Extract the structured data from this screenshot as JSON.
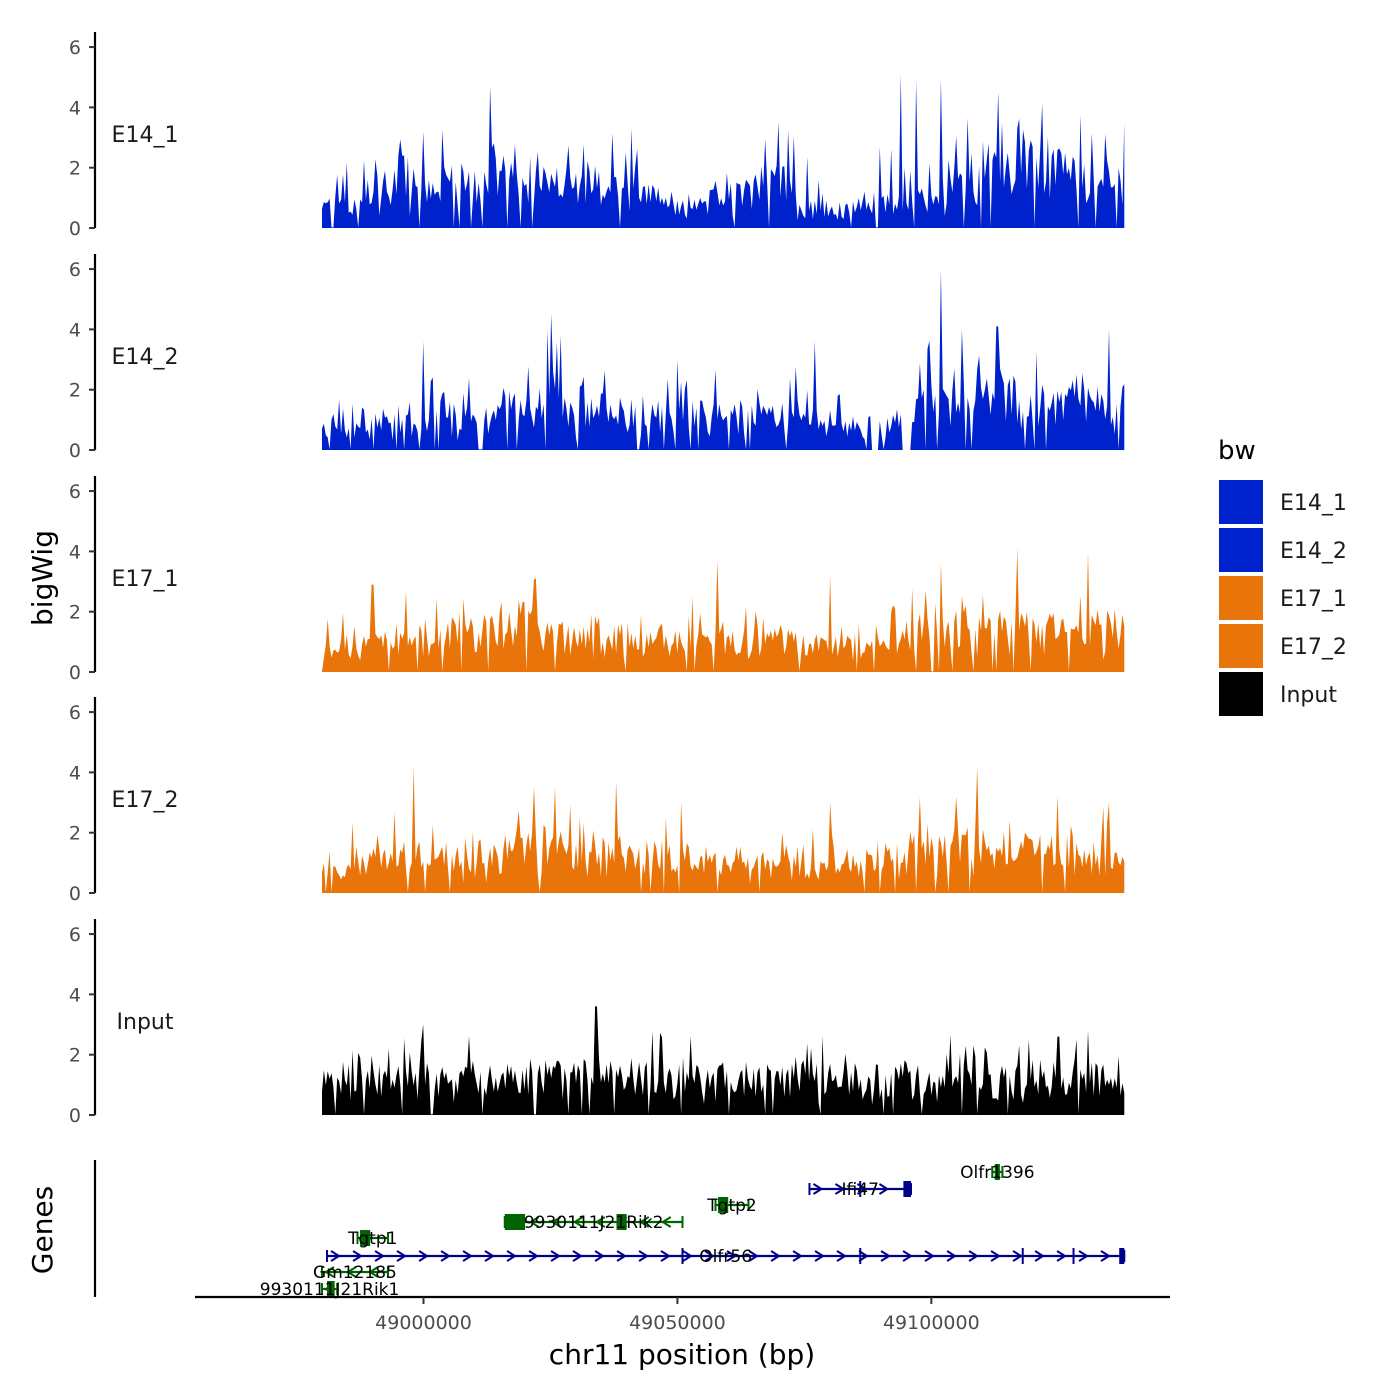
{
  "chart_data": {
    "type": "area",
    "chromosome": "chr11",
    "xlabel": "chr11 position (bp)",
    "ylabel_tracks": "bigWig",
    "ylabel_genes": "Genes",
    "xlim": [
      48955000,
      49147000
    ],
    "signal_range": [
      48980000,
      49138000
    ],
    "x_ticks": [
      {
        "value": 49000000,
        "label": "49000000"
      },
      {
        "value": 49050000,
        "label": "49050000"
      },
      {
        "value": 49100000,
        "label": "49100000"
      }
    ],
    "ylim": [
      0,
      6.5
    ],
    "y_ticks": [
      {
        "value": 0,
        "label": "0"
      },
      {
        "value": 2,
        "label": "2"
      },
      {
        "value": 4,
        "label": "4"
      },
      {
        "value": 6,
        "label": "6"
      }
    ],
    "legend": {
      "title": "bw",
      "position": "right",
      "entries": [
        {
          "name": "E14_1",
          "color": "#0022cc"
        },
        {
          "name": "E14_2",
          "color": "#0022cc"
        },
        {
          "name": "E17_1",
          "color": "#e8740a"
        },
        {
          "name": "E17_2",
          "color": "#e8740a"
        },
        {
          "name": "Input",
          "color": "#000000"
        }
      ]
    },
    "series": [
      {
        "name": "E14_1",
        "color": "#0022cc",
        "seed": 11,
        "base": 0.8,
        "noise": 1.3,
        "profile": [
          [
            48980000,
            0.9
          ],
          [
            48995000,
            0.9
          ],
          [
            49008000,
            1.5
          ],
          [
            49015000,
            2.1
          ],
          [
            49025000,
            1.6
          ],
          [
            49045000,
            1.0
          ],
          [
            49050000,
            0.5
          ],
          [
            49062000,
            1.2
          ],
          [
            49070000,
            1.9
          ],
          [
            49075000,
            0.3
          ],
          [
            49082000,
            0.6
          ],
          [
            49095000,
            0.8
          ],
          [
            49104000,
            1.3
          ],
          [
            49112000,
            2.6
          ],
          [
            49124000,
            2.2
          ],
          [
            49138000,
            1.4
          ]
        ],
        "peaks": [
          [
            49013000,
            4.7
          ],
          [
            49094000,
            5.1
          ],
          [
            49097000,
            4.9
          ],
          [
            49102000,
            4.9
          ],
          [
            49041000,
            3.3
          ],
          [
            49070000,
            3.5
          ],
          [
            49114000,
            3.5
          ],
          [
            49138000,
            3.5
          ],
          [
            49000000,
            3.2
          ],
          [
            48996000,
            2.4
          ]
        ]
      },
      {
        "name": "E14_2",
        "color": "#0022cc",
        "seed": 23,
        "base": 0.7,
        "noise": 1.2,
        "profile": [
          [
            48980000,
            0.8
          ],
          [
            48990000,
            0.9
          ],
          [
            49010000,
            1.1
          ],
          [
            49025000,
            2.0
          ],
          [
            49033000,
            1.3
          ],
          [
            49050000,
            1.0
          ],
          [
            49075000,
            1.1
          ],
          [
            49082000,
            0.6
          ],
          [
            49090000,
            0.5
          ],
          [
            49095000,
            1.2
          ],
          [
            49104000,
            2.2
          ],
          [
            49115000,
            2.0
          ],
          [
            49125000,
            1.6
          ],
          [
            49138000,
            1.5
          ]
        ],
        "peaks": [
          [
            49025000,
            4.5
          ],
          [
            49027000,
            3.8
          ],
          [
            49096000,
            5.5
          ],
          [
            49102000,
            6.0
          ],
          [
            49106000,
            4.0
          ],
          [
            49113000,
            4.1
          ],
          [
            49000000,
            3.6
          ],
          [
            49077000,
            3.6
          ],
          [
            49135000,
            4.0
          ],
          [
            49050000,
            3.0
          ]
        ],
        "gaps": [
          [
            49088000,
            49089500
          ],
          [
            49094000,
            49096000
          ]
        ]
      },
      {
        "name": "E17_1",
        "color": "#e8740a",
        "seed": 37,
        "base": 0.9,
        "noise": 1.0,
        "profile": [
          [
            48980000,
            1.1
          ],
          [
            49000000,
            1.2
          ],
          [
            49022000,
            1.9
          ],
          [
            49030000,
            1.3
          ],
          [
            49050000,
            0.9
          ],
          [
            49060000,
            1.1
          ],
          [
            49090000,
            0.9
          ],
          [
            49100000,
            1.6
          ],
          [
            49115000,
            1.7
          ],
          [
            49138000,
            1.3
          ]
        ],
        "peaks": [
          [
            49058000,
            3.7
          ],
          [
            49102000,
            3.6
          ],
          [
            49117000,
            4.1
          ],
          [
            49131000,
            4.0
          ],
          [
            49022000,
            3.1
          ],
          [
            49080000,
            3.2
          ],
          [
            48990000,
            2.9
          ]
        ]
      },
      {
        "name": "E17_2",
        "color": "#e8740a",
        "seed": 53,
        "base": 0.8,
        "noise": 1.1,
        "profile": [
          [
            48980000,
            1.0
          ],
          [
            48995000,
            1.2
          ],
          [
            49005000,
            0.9
          ],
          [
            49025000,
            1.9
          ],
          [
            49040000,
            1.4
          ],
          [
            49060000,
            1.0
          ],
          [
            49090000,
            1.1
          ],
          [
            49100000,
            1.8
          ],
          [
            49118000,
            1.4
          ],
          [
            49138000,
            1.3
          ]
        ],
        "peaks": [
          [
            48998000,
            4.2
          ],
          [
            49038000,
            3.7
          ],
          [
            49109000,
            4.2
          ],
          [
            49026000,
            3.5
          ],
          [
            49105000,
            3.2
          ],
          [
            49080000,
            3.0
          ],
          [
            49135000,
            3.0
          ]
        ]
      },
      {
        "name": "Input",
        "color": "#000000",
        "seed": 71,
        "base": 1.1,
        "noise": 0.9,
        "profile": [
          [
            48980000,
            1.2
          ],
          [
            49000000,
            1.3
          ],
          [
            49030000,
            1.4
          ],
          [
            49060000,
            1.3
          ],
          [
            49090000,
            1.2
          ],
          [
            49120000,
            1.4
          ],
          [
            49138000,
            1.2
          ]
        ],
        "peaks": [
          [
            49034000,
            3.6
          ],
          [
            49000000,
            3.0
          ],
          [
            49131000,
            2.8
          ],
          [
            49125000,
            2.6
          ],
          [
            49045000,
            2.8
          ]
        ]
      }
    ],
    "genes": [
      {
        "name": "Olfr1396",
        "strand": "+",
        "color": "#006400",
        "row": 0,
        "start": 49112000,
        "end": 49114000,
        "exons": [
          [
            49112500,
            49113500
          ]
        ]
      },
      {
        "name": "Ifi47",
        "strand": "+",
        "color": "#00008b",
        "row": 1,
        "start": 49076000,
        "end": 49096000,
        "exons": [
          [
            49094500,
            49096000
          ]
        ],
        "marks": [
          49086000
        ]
      },
      {
        "name": "Tgtp2",
        "strand": "-",
        "color": "#006400",
        "row": 2,
        "start": 49057500,
        "end": 49064000,
        "exons": [
          [
            49058000,
            49060000
          ]
        ]
      },
      {
        "name": "9930111J21Rik2",
        "strand": "-",
        "color": "#006400",
        "row": 3,
        "start": 49016000,
        "end": 49051000,
        "exons": [
          [
            49016000,
            49020000
          ],
          [
            49038000,
            49040000
          ]
        ]
      },
      {
        "name": "Tgtp1",
        "strand": "-",
        "color": "#006400",
        "row": 4,
        "start": 48987000,
        "end": 48993000,
        "exons": [
          [
            48987500,
            48989500
          ]
        ]
      },
      {
        "name": "Olfr56",
        "strand": "+",
        "color": "#00008b",
        "row": 5,
        "start": 48981000,
        "end": 49138000,
        "exons": [
          [
            49137000,
            49138000
          ]
        ],
        "marks": [
          49051000,
          49086000,
          49118000,
          49128000
        ]
      },
      {
        "name": "Gm12185",
        "strand": "-",
        "color": "#006400",
        "row": 6,
        "start": 48980000,
        "end": 48993000,
        "exons": []
      },
      {
        "name": "9930111J21Rik1",
        "strand": "-",
        "color": "#006400",
        "row": 7,
        "start": 48980000,
        "end": 48983000,
        "exons": [
          [
            48981000,
            48982500
          ]
        ]
      }
    ]
  }
}
